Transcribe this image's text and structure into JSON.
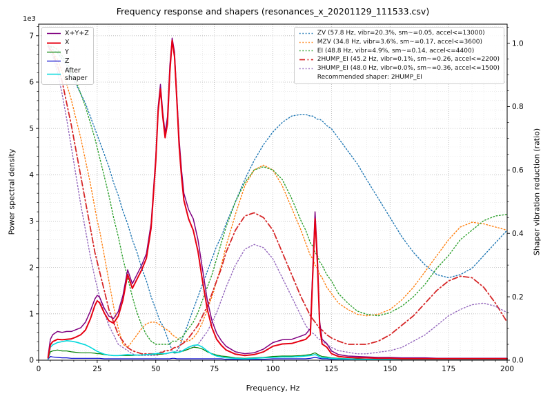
{
  "chart_data": {
    "type": "line",
    "title": "Frequency response and shapers (resonances_x_20201129_111533.csv)",
    "xlabel": "Frequency, Hz",
    "ylabel": "Power spectral density",
    "ylabel_right": "Shaper vibration reduction (ratio)",
    "y_offset_label": "1e3",
    "grid": true,
    "legend_left_position": "upper left",
    "legend_right_position": "upper right",
    "recommended_label": "Recommended shaper: 2HUMP_EI",
    "xlim": [
      0,
      200
    ],
    "x_major_ticks": [
      0,
      25,
      50,
      75,
      100,
      125,
      150,
      175,
      200
    ],
    "x_minor_step": 5,
    "ylim_left_e3": [
      0,
      7.25
    ],
    "y_major_ticks_left": [
      0,
      1,
      2,
      3,
      4,
      5,
      6,
      7
    ],
    "y_minor_step_left": 0.2,
    "ylim_right": [
      0,
      1.06
    ],
    "y_major_ticks_right": [
      0.0,
      0.2,
      0.4,
      0.6,
      0.8,
      1.0
    ],
    "y_minor_step_right": 0.05,
    "x": [
      4,
      5,
      6,
      8,
      10,
      12,
      14,
      16,
      18,
      20,
      22,
      24,
      25,
      26,
      28,
      30,
      32,
      34,
      36,
      38,
      40,
      42,
      44,
      46,
      48,
      50,
      51,
      52,
      53,
      54,
      55,
      56,
      57,
      58,
      59,
      60,
      61,
      62,
      64,
      66,
      68,
      70,
      72,
      74,
      76,
      78,
      80,
      84,
      88,
      92,
      96,
      100,
      104,
      108,
      112,
      114,
      116,
      117,
      118,
      119,
      120,
      121,
      123,
      125,
      128,
      132,
      136,
      140,
      145,
      150,
      155,
      160,
      165,
      170,
      175,
      180,
      185,
      190,
      195,
      200
    ],
    "psd_series": [
      {
        "id": "sum",
        "label": "X+Y+Z",
        "color": "#800080",
        "style": "solid",
        "width": 1.5,
        "values_e3": [
          0.08,
          0.45,
          0.55,
          0.62,
          0.6,
          0.62,
          0.62,
          0.66,
          0.7,
          0.82,
          1.05,
          1.32,
          1.4,
          1.36,
          1.12,
          0.95,
          0.9,
          1.05,
          1.4,
          1.95,
          1.65,
          1.85,
          2.05,
          2.3,
          2.95,
          4.4,
          5.45,
          5.95,
          5.35,
          4.9,
          5.25,
          6.35,
          6.95,
          6.65,
          5.7,
          4.75,
          4.1,
          3.6,
          3.25,
          3.05,
          2.6,
          1.95,
          1.3,
          0.85,
          0.58,
          0.42,
          0.3,
          0.18,
          0.14,
          0.16,
          0.24,
          0.38,
          0.44,
          0.45,
          0.52,
          0.56,
          0.68,
          1.95,
          3.2,
          2.25,
          0.82,
          0.45,
          0.36,
          0.2,
          0.12,
          0.09,
          0.08,
          0.07,
          0.06,
          0.06,
          0.05,
          0.05,
          0.05,
          0.04,
          0.04,
          0.04,
          0.04,
          0.04,
          0.04,
          0.04
        ]
      },
      {
        "id": "x",
        "label": "X",
        "color": "#e60012",
        "style": "solid",
        "width": 2.0,
        "values_e3": [
          0.05,
          0.33,
          0.4,
          0.45,
          0.44,
          0.45,
          0.46,
          0.5,
          0.55,
          0.65,
          0.88,
          1.18,
          1.28,
          1.24,
          1.02,
          0.85,
          0.8,
          0.95,
          1.3,
          1.85,
          1.55,
          1.75,
          1.95,
          2.2,
          2.85,
          4.3,
          5.35,
          5.85,
          5.25,
          4.8,
          5.1,
          6.2,
          6.9,
          6.55,
          5.6,
          4.6,
          3.95,
          3.45,
          3.05,
          2.8,
          2.35,
          1.7,
          1.1,
          0.7,
          0.45,
          0.32,
          0.22,
          0.13,
          0.1,
          0.12,
          0.18,
          0.3,
          0.35,
          0.36,
          0.42,
          0.45,
          0.55,
          1.8,
          3.05,
          2.1,
          0.7,
          0.35,
          0.28,
          0.14,
          0.08,
          0.06,
          0.05,
          0.05,
          0.04,
          0.04,
          0.03,
          0.03,
          0.03,
          0.03,
          0.03,
          0.03,
          0.03,
          0.03,
          0.03,
          0.03
        ]
      },
      {
        "id": "y",
        "label": "Y",
        "color": "#008000",
        "style": "solid",
        "width": 1.2,
        "values_e3": [
          0.03,
          0.18,
          0.2,
          0.22,
          0.2,
          0.2,
          0.18,
          0.17,
          0.16,
          0.16,
          0.16,
          0.15,
          0.14,
          0.14,
          0.12,
          0.11,
          0.1,
          0.1,
          0.1,
          0.1,
          0.1,
          0.11,
          0.11,
          0.12,
          0.12,
          0.13,
          0.13,
          0.13,
          0.13,
          0.14,
          0.15,
          0.16,
          0.17,
          0.17,
          0.16,
          0.18,
          0.19,
          0.2,
          0.24,
          0.28,
          0.27,
          0.24,
          0.18,
          0.14,
          0.11,
          0.09,
          0.08,
          0.05,
          0.04,
          0.05,
          0.06,
          0.08,
          0.09,
          0.09,
          0.1,
          0.11,
          0.12,
          0.14,
          0.16,
          0.13,
          0.1,
          0.08,
          0.07,
          0.05,
          0.04,
          0.03,
          0.03,
          0.02,
          0.02,
          0.02,
          0.02,
          0.02,
          0.02,
          0.02,
          0.02,
          0.02,
          0.02,
          0.02,
          0.02,
          0.02
        ]
      },
      {
        "id": "z",
        "label": "Z",
        "color": "#0000cd",
        "style": "solid",
        "width": 1.2,
        "values_e3": [
          0.02,
          0.08,
          0.07,
          0.06,
          0.05,
          0.05,
          0.04,
          0.04,
          0.04,
          0.04,
          0.04,
          0.04,
          0.04,
          0.04,
          0.03,
          0.03,
          0.03,
          0.03,
          0.03,
          0.03,
          0.03,
          0.03,
          0.03,
          0.03,
          0.03,
          0.03,
          0.03,
          0.03,
          0.03,
          0.03,
          0.03,
          0.03,
          0.04,
          0.04,
          0.03,
          0.03,
          0.03,
          0.03,
          0.03,
          0.03,
          0.03,
          0.03,
          0.03,
          0.03,
          0.03,
          0.03,
          0.02,
          0.02,
          0.02,
          0.02,
          0.02,
          0.03,
          0.03,
          0.03,
          0.03,
          0.03,
          0.04,
          0.05,
          0.06,
          0.05,
          0.04,
          0.03,
          0.03,
          0.02,
          0.02,
          0.02,
          0.02,
          0.02,
          0.02,
          0.02,
          0.02,
          0.02,
          0.02,
          0.02,
          0.02,
          0.02,
          0.02,
          0.02,
          0.02,
          0.02
        ]
      },
      {
        "id": "after",
        "label": "After\nshaper",
        "color": "#00d8dc",
        "style": "solid",
        "width": 1.6,
        "values_e3": [
          0.03,
          0.28,
          0.33,
          0.38,
          0.4,
          0.42,
          0.41,
          0.39,
          0.36,
          0.33,
          0.28,
          0.22,
          0.19,
          0.17,
          0.13,
          0.11,
          0.1,
          0.1,
          0.11,
          0.12,
          0.11,
          0.11,
          0.11,
          0.12,
          0.13,
          0.14,
          0.15,
          0.15,
          0.14,
          0.14,
          0.15,
          0.16,
          0.17,
          0.18,
          0.17,
          0.17,
          0.19,
          0.22,
          0.28,
          0.32,
          0.33,
          0.28,
          0.2,
          0.13,
          0.09,
          0.07,
          0.05,
          0.04,
          0.03,
          0.04,
          0.05,
          0.06,
          0.07,
          0.07,
          0.08,
          0.09,
          0.1,
          0.11,
          0.12,
          0.1,
          0.07,
          0.05,
          0.05,
          0.04,
          0.03,
          0.03,
          0.02,
          0.02,
          0.02,
          0.02,
          0.02,
          0.02,
          0.02,
          0.02,
          0.02,
          0.02,
          0.02,
          0.02,
          0.02,
          0.02
        ]
      }
    ],
    "shaper_series": [
      {
        "short": "ZV",
        "label": "ZV (57.8 Hz, vibr=20.3%, sm~=0.05, accel<=13000)",
        "color": "#1f77b4",
        "style": "dotted",
        "width": 1.4,
        "values_ratio": [
          0.99,
          0.99,
          0.98,
          0.97,
          0.95,
          0.93,
          0.9,
          0.87,
          0.84,
          0.81,
          0.77,
          0.73,
          0.71,
          0.69,
          0.65,
          0.61,
          0.56,
          0.52,
          0.47,
          0.43,
          0.38,
          0.34,
          0.29,
          0.25,
          0.2,
          0.16,
          0.14,
          0.12,
          0.11,
          0.09,
          0.07,
          0.05,
          0.03,
          0.02,
          0.03,
          0.04,
          0.06,
          0.08,
          0.12,
          0.16,
          0.2,
          0.24,
          0.28,
          0.32,
          0.36,
          0.39,
          0.43,
          0.5,
          0.57,
          0.63,
          0.68,
          0.72,
          0.75,
          0.77,
          0.775,
          0.775,
          0.77,
          0.77,
          0.765,
          0.76,
          0.76,
          0.755,
          0.74,
          0.73,
          0.7,
          0.66,
          0.62,
          0.57,
          0.51,
          0.45,
          0.39,
          0.34,
          0.3,
          0.27,
          0.26,
          0.27,
          0.29,
          0.33,
          0.37,
          0.41
        ]
      },
      {
        "short": "MZV",
        "label": "MZV (34.8 Hz, vibr=3.6%, sm~=0.17, accel<=3600)",
        "color": "#ff7f0e",
        "style": "dotted",
        "width": 1.4,
        "values_ratio": [
          0.99,
          0.98,
          0.97,
          0.95,
          0.91,
          0.87,
          0.82,
          0.76,
          0.7,
          0.63,
          0.56,
          0.48,
          0.44,
          0.41,
          0.33,
          0.25,
          0.17,
          0.1,
          0.05,
          0.04,
          0.06,
          0.08,
          0.1,
          0.115,
          0.12,
          0.12,
          0.115,
          0.11,
          0.105,
          0.1,
          0.095,
          0.09,
          0.08,
          0.075,
          0.07,
          0.065,
          0.06,
          0.06,
          0.06,
          0.07,
          0.09,
          0.12,
          0.16,
          0.2,
          0.25,
          0.3,
          0.36,
          0.46,
          0.55,
          0.6,
          0.615,
          0.6,
          0.55,
          0.48,
          0.41,
          0.37,
          0.33,
          0.32,
          0.3,
          0.29,
          0.27,
          0.26,
          0.23,
          0.21,
          0.18,
          0.16,
          0.145,
          0.14,
          0.145,
          0.16,
          0.19,
          0.23,
          0.28,
          0.33,
          0.38,
          0.42,
          0.435,
          0.43,
          0.42,
          0.41
        ]
      },
      {
        "short": "EI",
        "label": "EI (48.8 Hz, vibr=4.9%, sm~=0.14, accel<=4400)",
        "color": "#2ca02c",
        "style": "dotted",
        "width": 1.4,
        "values_ratio": [
          0.995,
          0.99,
          0.99,
          0.98,
          0.96,
          0.94,
          0.91,
          0.88,
          0.84,
          0.8,
          0.75,
          0.7,
          0.67,
          0.64,
          0.58,
          0.52,
          0.45,
          0.39,
          0.32,
          0.26,
          0.2,
          0.15,
          0.11,
          0.08,
          0.06,
          0.05,
          0.05,
          0.05,
          0.05,
          0.05,
          0.05,
          0.05,
          0.06,
          0.06,
          0.06,
          0.07,
          0.07,
          0.08,
          0.1,
          0.12,
          0.15,
          0.19,
          0.23,
          0.27,
          0.32,
          0.37,
          0.42,
          0.5,
          0.56,
          0.6,
          0.61,
          0.6,
          0.57,
          0.51,
          0.44,
          0.41,
          0.37,
          0.36,
          0.34,
          0.33,
          0.31,
          0.3,
          0.27,
          0.25,
          0.21,
          0.18,
          0.155,
          0.145,
          0.14,
          0.15,
          0.17,
          0.2,
          0.24,
          0.29,
          0.33,
          0.38,
          0.41,
          0.44,
          0.455,
          0.46
        ]
      },
      {
        "short": "2HUMP_EI",
        "label": "2HUMP_EI (45.2 Hz, vibr=0.1%, sm~=0.26, accel<=2200)",
        "color": "#d62728",
        "style": "dashdot",
        "width": 1.8,
        "values_ratio": [
          0.99,
          0.98,
          0.97,
          0.93,
          0.88,
          0.81,
          0.74,
          0.66,
          0.58,
          0.5,
          0.42,
          0.34,
          0.31,
          0.28,
          0.22,
          0.16,
          0.12,
          0.08,
          0.06,
          0.04,
          0.03,
          0.025,
          0.02,
          0.02,
          0.02,
          0.02,
          0.02,
          0.025,
          0.025,
          0.03,
          0.03,
          0.03,
          0.035,
          0.04,
          0.04,
          0.045,
          0.05,
          0.055,
          0.07,
          0.09,
          0.11,
          0.14,
          0.17,
          0.21,
          0.25,
          0.29,
          0.34,
          0.41,
          0.455,
          0.465,
          0.45,
          0.41,
          0.34,
          0.27,
          0.2,
          0.17,
          0.14,
          0.13,
          0.12,
          0.11,
          0.1,
          0.095,
          0.08,
          0.07,
          0.06,
          0.05,
          0.05,
          0.05,
          0.06,
          0.08,
          0.11,
          0.14,
          0.18,
          0.22,
          0.25,
          0.265,
          0.26,
          0.23,
          0.18,
          0.12
        ]
      },
      {
        "short": "3HUMP_EI",
        "label": "3HUMP_EI (48.0 Hz, vibr=0.0%, sm~=0.36, accel<=1500)",
        "color": "#9467bd",
        "style": "dotted",
        "width": 1.4,
        "values_ratio": [
          0.99,
          0.97,
          0.96,
          0.91,
          0.84,
          0.76,
          0.67,
          0.58,
          0.49,
          0.41,
          0.33,
          0.26,
          0.23,
          0.2,
          0.15,
          0.11,
          0.08,
          0.05,
          0.04,
          0.03,
          0.02,
          0.015,
          0.015,
          0.015,
          0.015,
          0.015,
          0.015,
          0.02,
          0.02,
          0.02,
          0.02,
          0.025,
          0.025,
          0.025,
          0.03,
          0.03,
          0.03,
          0.03,
          0.035,
          0.04,
          0.05,
          0.07,
          0.09,
          0.12,
          0.15,
          0.19,
          0.23,
          0.3,
          0.35,
          0.365,
          0.355,
          0.32,
          0.26,
          0.2,
          0.14,
          0.11,
          0.09,
          0.085,
          0.08,
          0.07,
          0.065,
          0.06,
          0.05,
          0.04,
          0.03,
          0.025,
          0.02,
          0.02,
          0.025,
          0.03,
          0.04,
          0.06,
          0.08,
          0.11,
          0.14,
          0.16,
          0.175,
          0.18,
          0.17,
          0.15
        ]
      }
    ]
  }
}
